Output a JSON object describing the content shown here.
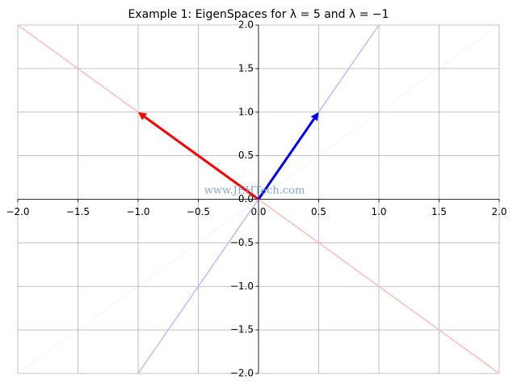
{
  "chart_data": {
    "type": "line",
    "title": "Example 1: EigenSpaces for λ = 5 and λ = −1",
    "watermark": "www.JEHTech.com",
    "series": [
      {
        "color": "#ffbbbb",
        "kind": "line",
        "x": [
          -2,
          2
        ],
        "values": [
          2,
          -2
        ]
      },
      {
        "color": "#bbbbff",
        "kind": "line",
        "x": [
          -1,
          1
        ],
        "values": [
          -2,
          2
        ]
      },
      {
        "color": "#ff0000",
        "kind": "arrow",
        "x": [
          0,
          -1
        ],
        "values": [
          0,
          1
        ]
      },
      {
        "color": "#0000ff",
        "kind": "arrow",
        "x": [
          0,
          0.5
        ],
        "values": [
          0,
          1
        ]
      }
    ],
    "xlim": [
      -2,
      2
    ],
    "ylim": [
      -2,
      2
    ],
    "xticks": [
      {
        "value": -2,
        "label": "−2.0"
      },
      {
        "value": -1.5,
        "label": "−1.5"
      },
      {
        "value": -1,
        "label": "−1.0"
      },
      {
        "value": -0.5,
        "label": "−0.5"
      },
      {
        "value": 0,
        "label": "0.0"
      },
      0.5,
      {
        "value": 1,
        "label": "1.0"
      },
      1.5,
      {
        "value": 2,
        "label": "2.0"
      }
    ],
    "yticks": [
      {
        "value": -2,
        "label": "−2.0"
      },
      {
        "value": -1.5,
        "label": "−1.5"
      },
      {
        "value": -1,
        "label": "−1.0"
      },
      {
        "value": -0.5,
        "label": "−0.5"
      },
      {
        "value": 0,
        "label": "0.0"
      },
      0.5,
      {
        "value": 1,
        "label": "1.0"
      },
      1.5,
      {
        "value": 2,
        "label": "2.0"
      }
    ],
    "grid": true
  }
}
